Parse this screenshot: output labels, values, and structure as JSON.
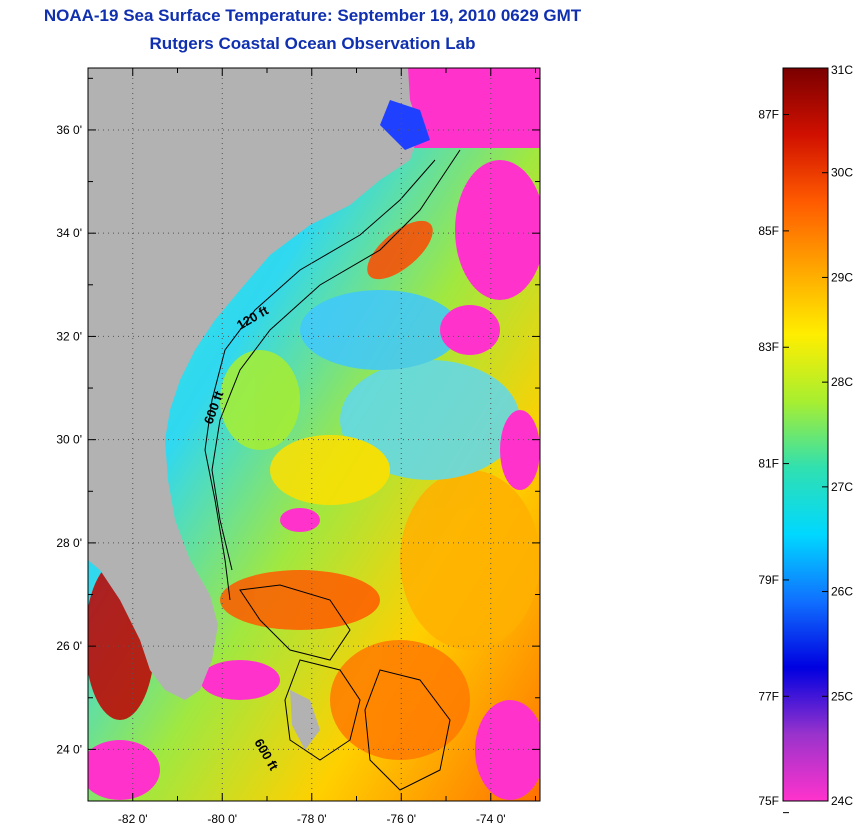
{
  "title_line1": "NOAA-19 Sea Surface Temperature:  September 19, 2010 0629 GMT",
  "title_line2": "Rutgers Coastal Ocean Observation Lab",
  "map": {
    "lat_range": [
      23,
      37.2
    ],
    "lon_range": [
      -83,
      -72.9
    ],
    "lat_ticks": [
      {
        "value": 24,
        "label": "24 0'"
      },
      {
        "value": 26,
        "label": "26 0'"
      },
      {
        "value": 28,
        "label": "28 0'"
      },
      {
        "value": 30,
        "label": "30 0'"
      },
      {
        "value": 32,
        "label": "32 0'"
      },
      {
        "value": 34,
        "label": "34 0'"
      },
      {
        "value": 36,
        "label": "36 0'"
      }
    ],
    "lon_ticks": [
      {
        "value": -82,
        "label": "-82 0'"
      },
      {
        "value": -80,
        "label": "-80 0'"
      },
      {
        "value": -78,
        "label": "-78 0'"
      },
      {
        "value": -76,
        "label": "-76 0'"
      },
      {
        "value": -74,
        "label": "-74 0'"
      }
    ],
    "isobath_labels": [
      "120 ft",
      "600 ft",
      "600 ft"
    ],
    "colors": {
      "land": "#b2b2b2",
      "cloud": "#ff33cc",
      "frame": "#000000"
    }
  },
  "colorbar": {
    "celsius_range": [
      24,
      31
    ],
    "celsius_ticks": [
      {
        "value": 31,
        "label": "31C"
      },
      {
        "value": 30,
        "label": "30C"
      },
      {
        "value": 29,
        "label": "29C"
      },
      {
        "value": 28,
        "label": "28C"
      },
      {
        "value": 27,
        "label": "27C"
      },
      {
        "value": 26,
        "label": "26C"
      },
      {
        "value": 25,
        "label": "25C"
      },
      {
        "value": 24,
        "label": "24C"
      }
    ],
    "fahrenheit_ticks": [
      {
        "value": 87,
        "label": "87F"
      },
      {
        "value": 85,
        "label": "85F"
      },
      {
        "value": 83,
        "label": "83F"
      },
      {
        "value": 81,
        "label": "81F"
      },
      {
        "value": 79,
        "label": "79F"
      },
      {
        "value": 77,
        "label": "77F"
      },
      {
        "value": 75,
        "label": "75F"
      }
    ],
    "gradient_stops": [
      "#7a0000",
      "#d01000",
      "#ff5a00",
      "#ffa500",
      "#ffee00",
      "#a8ee30",
      "#30e0b0",
      "#00d8ff",
      "#1070ff",
      "#0000e0",
      "#9933cc",
      "#ff33cc"
    ]
  }
}
